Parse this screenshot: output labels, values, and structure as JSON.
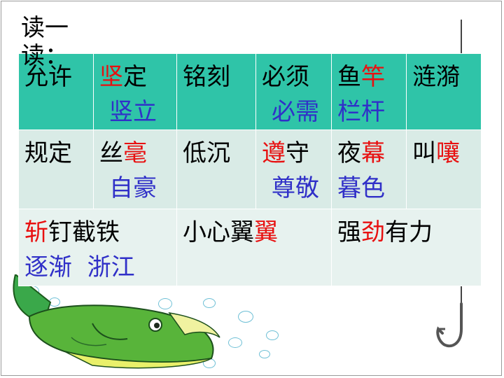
{
  "title": "读一读：",
  "rows": [
    [
      {
        "parts": [
          {
            "t": "允许",
            "c": "blk"
          }
        ]
      },
      {
        "line1": [
          {
            "t": "坚",
            "c": "red"
          },
          {
            "t": "定",
            "c": "blk"
          }
        ],
        "line2": [
          {
            "t": "竖立",
            "c": "blu"
          }
        ]
      },
      {
        "parts": [
          {
            "t": "铭刻",
            "c": "blk"
          }
        ]
      },
      {
        "line1": [
          {
            "t": "必须",
            "c": "blk"
          }
        ],
        "line2": [
          {
            "t": "必需",
            "c": "blu"
          }
        ]
      },
      {
        "line1": [
          {
            "t": "鱼",
            "c": "blk"
          },
          {
            "t": "竿",
            "c": "red"
          }
        ],
        "line2": [
          {
            "t": "栏杆",
            "c": "blu"
          }
        ]
      },
      {
        "parts": [
          {
            "t": "涟漪",
            "c": "blk"
          }
        ]
      }
    ],
    [
      {
        "parts": [
          {
            "t": "规定",
            "c": "blk"
          }
        ]
      },
      {
        "line1": [
          {
            "t": "丝",
            "c": "blk"
          },
          {
            "t": "毫",
            "c": "red"
          }
        ],
        "line2": [
          {
            "t": "自豪",
            "c": "blu"
          }
        ]
      },
      {
        "parts": [
          {
            "t": "低沉",
            "c": "blk"
          }
        ]
      },
      {
        "line1": [
          {
            "t": "遵",
            "c": "red"
          },
          {
            "t": "守",
            "c": "blk"
          }
        ],
        "line2": [
          {
            "t": "尊敬",
            "c": "blu"
          }
        ]
      },
      {
        "line1": [
          {
            "t": "夜",
            "c": "blk"
          },
          {
            "t": "幕",
            "c": "red"
          }
        ],
        "line2": [
          {
            "t": "暮色",
            "c": "blu"
          }
        ]
      },
      {
        "line1": [
          {
            "t": "叫",
            "c": "blk"
          },
          {
            "t": "嚷",
            "c": "red"
          }
        ]
      }
    ],
    [
      {
        "line1": [
          {
            "t": "斩",
            "c": "red"
          },
          {
            "t": "钉截铁",
            "c": "blk"
          }
        ],
        "line2": [
          {
            "t": "逐渐  浙江",
            "c": "blu"
          }
        ]
      },
      {
        "line1": [
          {
            "t": "小心翼",
            "c": "blk"
          },
          {
            "t": "翼",
            "c": "red"
          }
        ]
      },
      {
        "line1": [
          {
            "t": "强",
            "c": "blk"
          },
          {
            "t": "劲",
            "c": "red"
          },
          {
            "t": "有力",
            "c": "blk"
          }
        ]
      }
    ]
  ]
}
